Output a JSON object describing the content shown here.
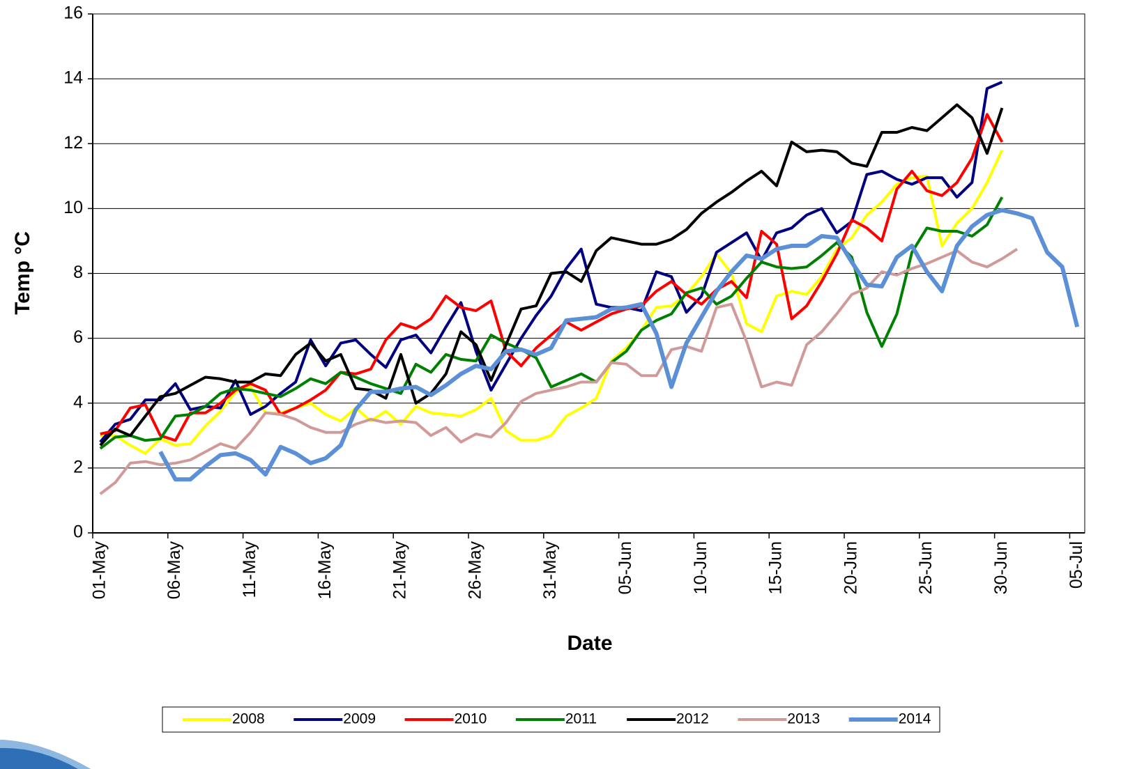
{
  "chart_data": {
    "type": "line",
    "x_label": "Date",
    "y_label": "Temp °C",
    "categories": [
      "01-May",
      null,
      null,
      null,
      null,
      "06-May",
      null,
      null,
      null,
      null,
      "11-May",
      null,
      null,
      null,
      null,
      "16-May",
      null,
      null,
      null,
      null,
      "21-May",
      null,
      null,
      null,
      null,
      "26-May",
      null,
      null,
      null,
      null,
      "31-May",
      null,
      null,
      null,
      null,
      "05-Jun",
      null,
      null,
      null,
      null,
      "10-Jun",
      null,
      null,
      null,
      null,
      "15-Jun",
      null,
      null,
      null,
      null,
      "20-Jun",
      null,
      null,
      null,
      null,
      "25-Jun",
      null,
      null,
      null,
      null,
      "30-Jun",
      null,
      null,
      null,
      null,
      "05-Jul"
    ],
    "ylim": [
      0,
      16
    ],
    "yticks": [
      0,
      2,
      4,
      6,
      8,
      10,
      12,
      14,
      16
    ],
    "grid": true,
    "legend": "bottom",
    "series": [
      {
        "name": "2008",
        "color": "#ffff00",
        "values": [
          3.0,
          3.0,
          2.7,
          2.45,
          2.9,
          2.7,
          2.75,
          3.3,
          3.75,
          4.35,
          4.5,
          3.7,
          3.7,
          3.85,
          4.0,
          3.65,
          3.45,
          3.85,
          3.45,
          3.75,
          3.35,
          3.9,
          3.7,
          3.65,
          3.6,
          3.8,
          4.15,
          3.15,
          2.85,
          2.85,
          3.0,
          3.6,
          3.85,
          4.15,
          5.3,
          5.7,
          6.25,
          6.95,
          7.0,
          7.35,
          7.9,
          8.6,
          8.0,
          6.45,
          6.2,
          7.3,
          7.45,
          7.35,
          7.9,
          8.75,
          9.1,
          9.8,
          10.2,
          10.75,
          10.95,
          11.0,
          8.85,
          9.55,
          10.0,
          10.8,
          11.8,
          null,
          null,
          null,
          null,
          null
        ]
      },
      {
        "name": "2009",
        "color": "#000080",
        "values": [
          2.8,
          3.35,
          3.5,
          4.1,
          4.1,
          4.6,
          3.8,
          3.9,
          3.85,
          4.7,
          3.65,
          3.9,
          4.3,
          4.65,
          5.95,
          5.15,
          5.85,
          5.95,
          5.5,
          5.1,
          5.95,
          6.1,
          5.55,
          6.35,
          7.1,
          5.6,
          4.4,
          5.2,
          6.0,
          6.7,
          7.3,
          8.15,
          8.75,
          7.05,
          6.95,
          6.95,
          6.85,
          8.05,
          7.9,
          6.8,
          7.3,
          8.65,
          8.95,
          9.25,
          8.4,
          9.25,
          9.4,
          9.8,
          10.0,
          9.25,
          9.6,
          11.05,
          11.15,
          10.9,
          10.75,
          10.95,
          10.95,
          10.35,
          10.8,
          13.7,
          13.9,
          null,
          null,
          null,
          null,
          null
        ]
      },
      {
        "name": "2010",
        "color": "#ff0000",
        "values": [
          3.05,
          3.15,
          3.85,
          3.95,
          3.0,
          2.85,
          3.7,
          3.7,
          4.0,
          4.4,
          4.6,
          4.4,
          3.65,
          3.85,
          4.1,
          4.4,
          4.95,
          4.9,
          5.05,
          5.95,
          6.45,
          6.3,
          6.6,
          7.3,
          6.95,
          6.85,
          7.15,
          5.6,
          5.15,
          5.7,
          6.1,
          6.5,
          6.25,
          6.5,
          6.75,
          6.9,
          7.0,
          7.45,
          7.75,
          7.35,
          7.05,
          7.5,
          7.75,
          7.25,
          9.3,
          8.9,
          6.6,
          7.0,
          7.75,
          8.6,
          9.65,
          9.4,
          9.0,
          10.6,
          11.15,
          10.55,
          10.4,
          10.8,
          11.55,
          12.9,
          12.05,
          null,
          null,
          null,
          null,
          null
        ]
      },
      {
        "name": "2011",
        "color": "#008000",
        "values": [
          2.6,
          2.95,
          3.0,
          2.85,
          2.9,
          3.6,
          3.65,
          3.9,
          4.3,
          4.45,
          4.4,
          4.3,
          4.2,
          4.45,
          4.75,
          4.6,
          4.95,
          4.8,
          4.6,
          4.45,
          4.3,
          5.2,
          4.95,
          5.5,
          5.35,
          5.3,
          6.1,
          5.85,
          5.65,
          5.4,
          4.5,
          4.7,
          4.9,
          4.65,
          5.25,
          5.6,
          6.25,
          6.55,
          6.75,
          7.4,
          7.55,
          7.05,
          7.3,
          7.85,
          8.35,
          8.2,
          8.15,
          8.2,
          8.55,
          8.95,
          8.5,
          6.8,
          5.75,
          6.75,
          8.65,
          9.4,
          9.3,
          9.3,
          9.15,
          9.5,
          10.35,
          null,
          null,
          null,
          null,
          null
        ]
      },
      {
        "name": "2012",
        "color": "#000000",
        "values": [
          2.7,
          3.2,
          3.0,
          3.6,
          4.2,
          4.3,
          4.55,
          4.8,
          4.75,
          4.65,
          4.65,
          4.9,
          4.85,
          5.5,
          5.85,
          5.3,
          5.5,
          4.45,
          4.4,
          4.15,
          5.5,
          4.0,
          4.3,
          4.9,
          6.2,
          5.8,
          4.7,
          5.8,
          6.9,
          7.0,
          8.0,
          8.05,
          7.75,
          8.7,
          9.1,
          9.0,
          8.9,
          8.9,
          9.05,
          9.35,
          9.85,
          10.2,
          10.5,
          10.85,
          11.15,
          10.7,
          12.05,
          11.75,
          11.8,
          11.75,
          11.4,
          11.3,
          12.35,
          12.35,
          12.5,
          12.4,
          12.8,
          13.2,
          12.8,
          11.7,
          13.1,
          null,
          null,
          null,
          null,
          null
        ]
      },
      {
        "name": "2013",
        "color": "#d09a98",
        "values": [
          1.2,
          1.55,
          2.15,
          2.2,
          2.1,
          2.15,
          2.25,
          2.5,
          2.75,
          2.6,
          3.1,
          3.7,
          3.65,
          3.5,
          3.25,
          3.1,
          3.1,
          3.35,
          3.5,
          3.4,
          3.45,
          3.4,
          3.0,
          3.25,
          2.8,
          3.05,
          2.95,
          3.4,
          4.05,
          4.3,
          4.4,
          4.5,
          4.65,
          4.65,
          5.25,
          5.2,
          4.85,
          4.85,
          5.65,
          5.75,
          5.6,
          6.95,
          7.05,
          5.9,
          4.5,
          4.65,
          4.55,
          5.8,
          6.2,
          6.75,
          7.35,
          7.55,
          8.05,
          7.95,
          8.15,
          8.3,
          8.5,
          8.7,
          8.35,
          8.2,
          8.45,
          8.75,
          null,
          null,
          null,
          null
        ]
      },
      {
        "name": "2014",
        "color": "#5b8fd6",
        "values": [
          null,
          null,
          null,
          null,
          2.5,
          1.65,
          1.65,
          2.05,
          2.4,
          2.45,
          2.25,
          1.8,
          2.65,
          2.45,
          2.15,
          2.3,
          2.7,
          3.8,
          4.35,
          4.35,
          4.45,
          4.5,
          4.25,
          4.55,
          4.9,
          5.15,
          5.05,
          5.6,
          5.65,
          5.5,
          5.7,
          6.55,
          6.6,
          6.65,
          6.9,
          6.95,
          7.05,
          6.15,
          4.5,
          5.85,
          6.65,
          7.45,
          8.05,
          8.55,
          8.45,
          8.75,
          8.85,
          8.85,
          9.15,
          9.1,
          8.35,
          7.65,
          7.6,
          8.5,
          8.85,
          8.05,
          7.45,
          8.85,
          9.45,
          9.8,
          9.95,
          9.85,
          9.7,
          8.65,
          8.2,
          6.35
        ]
      }
    ]
  }
}
